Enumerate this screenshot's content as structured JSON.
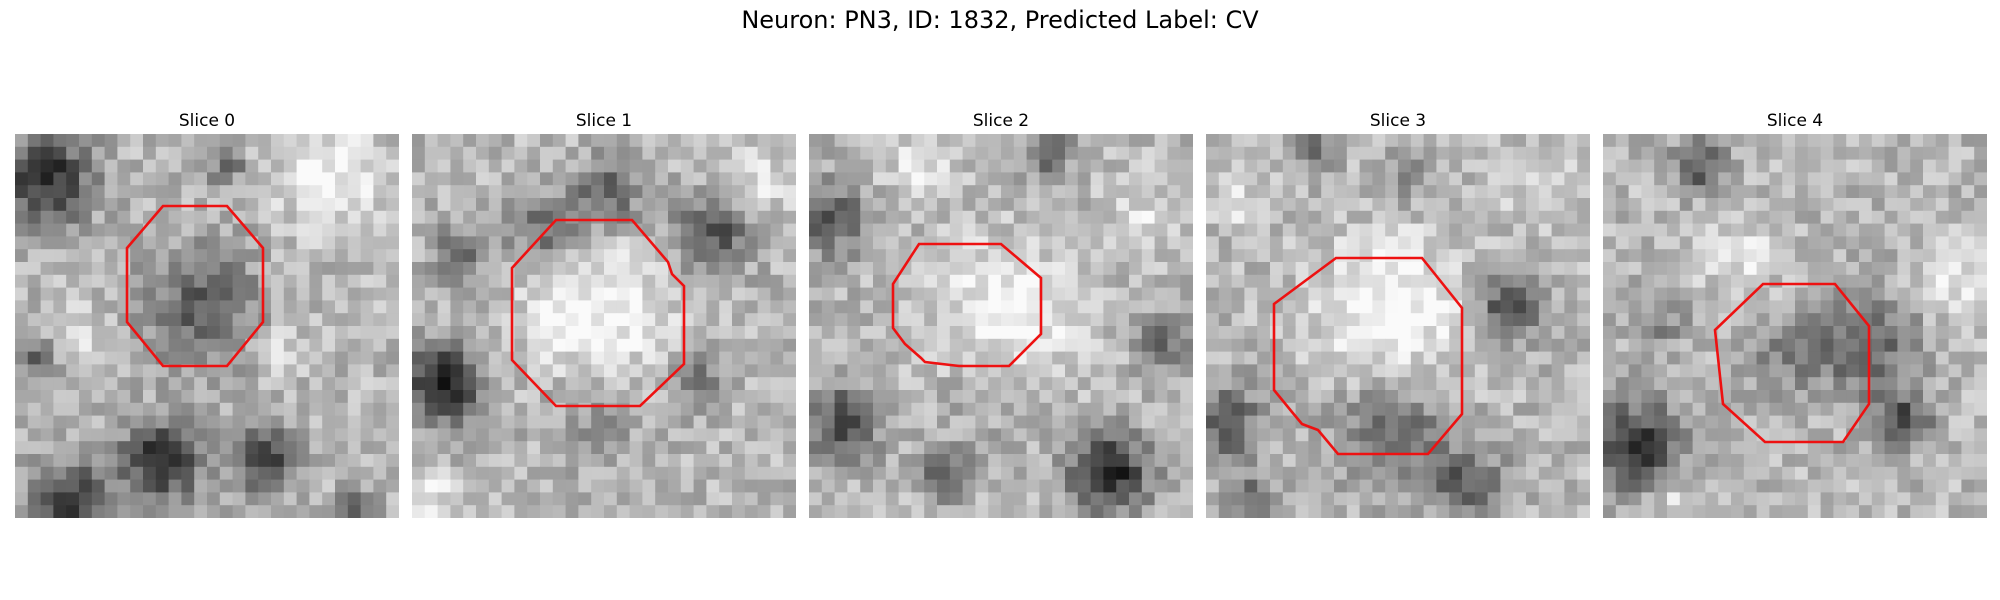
{
  "figure": {
    "title": "Neuron: PN3, ID: 1832, Predicted Label: CV"
  },
  "panels": [
    {
      "title": "Slice 0",
      "outline_color": "#ee1111"
    },
    {
      "title": "Slice 1",
      "outline_color": "#ee1111"
    },
    {
      "title": "Slice 2",
      "outline_color": "#ee1111"
    },
    {
      "title": "Slice 3",
      "outline_color": "#ee1111"
    },
    {
      "title": "Slice 4",
      "outline_color": "#ee1111"
    }
  ]
}
